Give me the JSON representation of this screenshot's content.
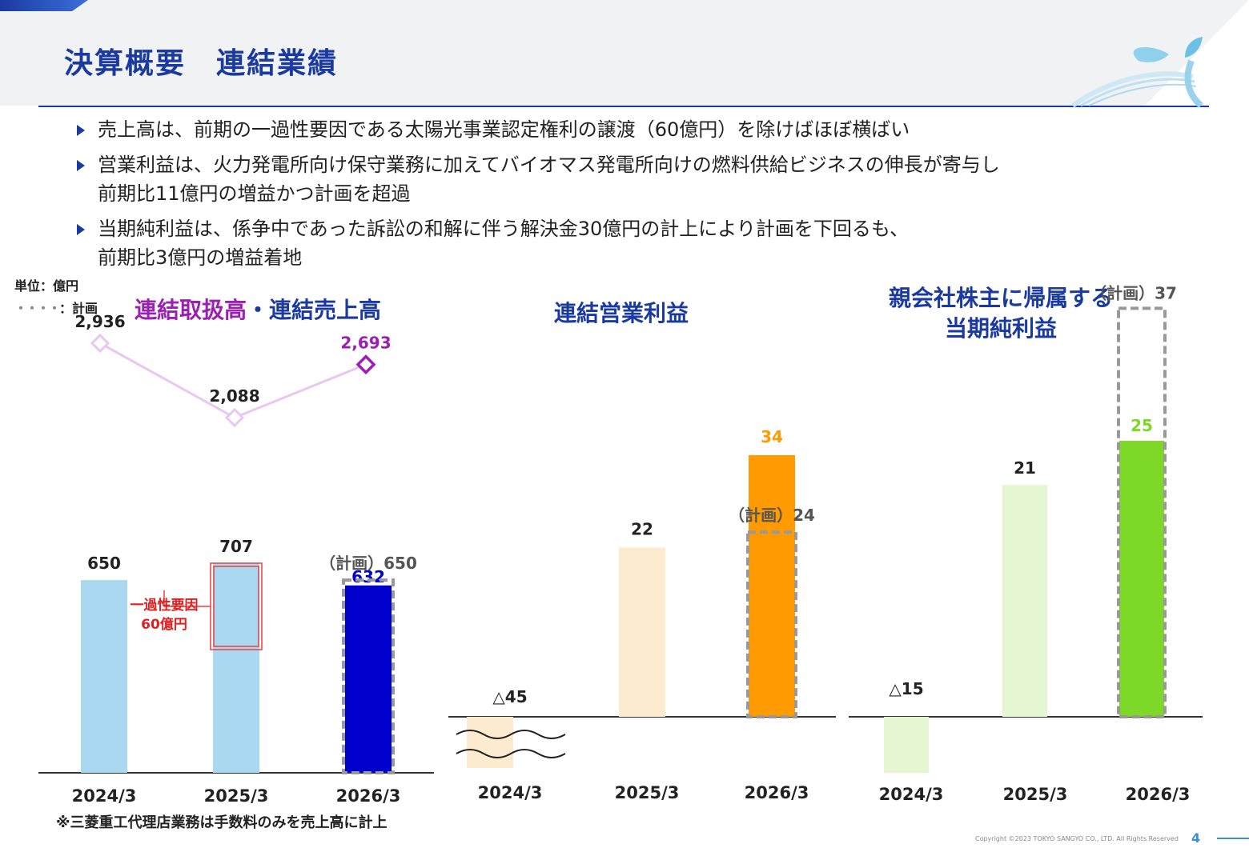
{
  "header": {
    "title": "決算概要　連結業績"
  },
  "bullets": [
    [
      "売上高は、前期の一過性要因である太陽光事業認定権利の譲渡（60億円）を除けばほぼ横ばい"
    ],
    [
      "営業利益は、火力発電所向け保守業務に加えてバイオマス発電所向けの燃料供給ビジネスの伸長が寄与し",
      "前期比11億円の増益かつ計画を超過"
    ],
    [
      "当期純利益は、係争中であった訴訟の和解に伴う解決金30億円の計上により計画を下回るも、",
      "前期比3億円の増益着地"
    ]
  ],
  "unit": {
    "label": "単位：億円",
    "plan_legend_marker": "・・・・",
    "plan_legend": "：計画"
  },
  "colors": {
    "accent": "#1a3aa0",
    "sales_bar": "#a9d8f0",
    "sales_current": "#0000cc",
    "handling": "#e8c8f0",
    "handling_current": "#9b1fb0",
    "op_past": "#fdebcf",
    "op_current": "#ff9a00",
    "net_past": "#e4f7d2",
    "net_current": "#7dd828",
    "plan_box": "#999999",
    "one_time": "#e84040"
  },
  "chart_data": [
    {
      "type": "bar",
      "title_parts": [
        "連結取扱高",
        "・",
        "連結売上高"
      ],
      "categories": [
        "2024/3",
        "2025/3",
        "2026/3"
      ],
      "series": [
        {
          "values": [
            650,
            707,
            632
          ],
          "labels": [
            "650",
            "707",
            "632"
          ]
        }
      ],
      "line_series": {
        "values": [
          2936,
          2088,
          2693
        ],
        "labels": [
          "2,936",
          "2,088",
          "2,693"
        ]
      },
      "plan": {
        "category": "2026/3",
        "value": 650,
        "label": "（計画）650"
      },
      "annotation": {
        "category": "2025/3",
        "value": 60,
        "label_lines": [
          "一過性要因",
          "60億円"
        ]
      },
      "note": "※三菱重工代理店業務は手数料のみを売上高に計上"
    },
    {
      "type": "bar",
      "title": "連結営業利益",
      "categories": [
        "2024/3",
        "2025/3",
        "2026/3"
      ],
      "values": [
        -45,
        22,
        34
      ],
      "labels": [
        "△45",
        "22",
        "34"
      ],
      "plan": {
        "category": "2026/3",
        "value": 24,
        "label": "（計画）24"
      },
      "axis_break": true
    },
    {
      "type": "bar",
      "title_lines": [
        "親会社株主に帰属する",
        "当期純利益"
      ],
      "categories": [
        "2024/3",
        "2025/3",
        "2026/3"
      ],
      "values": [
        -15,
        21,
        25
      ],
      "labels": [
        "△15",
        "21",
        "25"
      ],
      "plan": {
        "category": "2026/3",
        "value": 37,
        "label": "（計画）37"
      }
    }
  ],
  "footer": {
    "copyright": "Copyright ©2023 TOKYO SANGYO CO., LTD. All Rights Reserved",
    "page_number": "4"
  }
}
